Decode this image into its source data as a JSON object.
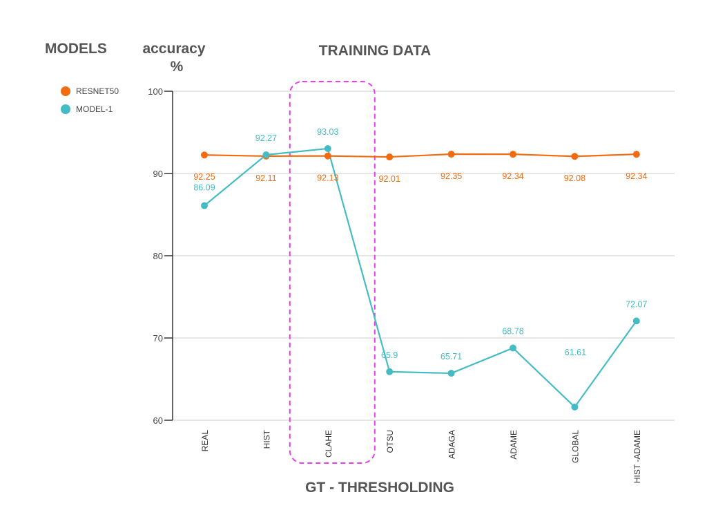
{
  "chart_data": {
    "type": "line",
    "title": "TRAINING DATA",
    "xlabel": "GT - THRESHOLDING",
    "ylabel": "accuracy %",
    "ylabel_lines": [
      "accuracy",
      "%"
    ],
    "legend_title": "MODELS",
    "legend_placement": "left",
    "categories": [
      "REAL",
      "HIST",
      "CLAHE",
      "OTSU",
      "ADAGA",
      "ADAME",
      "GLOBAL",
      "HIST -ADAME"
    ],
    "ylim": [
      60,
      100
    ],
    "yticks": [
      60,
      70,
      80,
      90,
      100
    ],
    "grid": true,
    "highlight_category": "CLAHE",
    "series": [
      {
        "name": "RESNET50",
        "color": "#f26b0f",
        "values": [
          92.25,
          92.11,
          92.13,
          92.01,
          92.35,
          92.34,
          92.08,
          92.34
        ],
        "labels": [
          "92.25",
          "92.11",
          "92.13",
          "92.01",
          "92.35",
          "92.34",
          "92.08",
          "92.34"
        ]
      },
      {
        "name": "MODEL-1",
        "color": "#45bcc4",
        "values": [
          86.09,
          92.27,
          93.03,
          65.9,
          65.71,
          68.78,
          61.61,
          72.07
        ],
        "labels": [
          "86.09",
          "92.27",
          "93.03",
          "65.9",
          "65.71",
          "68.78",
          "61.61",
          "72.07"
        ]
      }
    ],
    "highlight_color": "#e83de8"
  }
}
